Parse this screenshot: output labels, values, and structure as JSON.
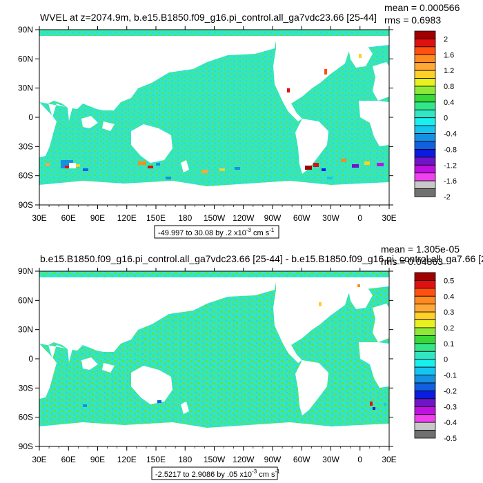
{
  "palette": {
    "ocean": "#33e6c3",
    "ocean_light": "#2ee0b4",
    "ocean_green": "#5ee04e",
    "ocean_blue": "#29c8e0",
    "land": "#ffffff",
    "frame": "#000000"
  },
  "chart_data": [
    {
      "type": "heatmap",
      "title": "WVEL at z=2074.9m, b.e15.B1850.f09_g16.pi_control.all_ga7vdc23.66 [25-44]",
      "stats": {
        "mean": "mean = 0.000566",
        "rms": "rms = 0.6983"
      },
      "range_label": "-49.997 to 30.08 by .2 x10",
      "range_exp": "-3",
      "range_units": " cm s",
      "range_units_exp": "-1",
      "x_ticks": [
        "30E",
        "60E",
        "90E",
        "120E",
        "150E",
        "180",
        "150W",
        "120W",
        "90W",
        "60W",
        "30W",
        "0",
        "30E"
      ],
      "y_ticks": [
        "90N",
        "60N",
        "30N",
        "0",
        "30S",
        "60S",
        "90S"
      ],
      "colorbar": {
        "labels": [
          "2",
          "1.6",
          "1.2",
          "0.8",
          "0.4",
          "0",
          "-0.4",
          "-0.8",
          "-1.2",
          "-1.6",
          "-2"
        ],
        "colors": [
          "#a00000",
          "#e01010",
          "#ff5010",
          "#ff8a20",
          "#ffa838",
          "#ffd028",
          "#e8f020",
          "#8ee838",
          "#38d838",
          "#32e68a",
          "#33e6c3",
          "#19f0f0",
          "#16c4f0",
          "#1690e0",
          "#1060e0",
          "#0a1ce0",
          "#7014c8",
          "#c010e0",
          "#f040f0",
          "#c8c8c8",
          "#707070"
        ]
      }
    },
    {
      "type": "heatmap",
      "title": "b.e15.B1850.f09_g16.pi_control.all_ga7vdc23.66 [25-44] - b.e15.B1850.f09_g16.pi_control.all_ga7.66 [2",
      "stats": {
        "mean": "mean = 1.305e-05",
        "rms": "rms = 0.04863"
      },
      "range_label": "-2.5217 to 2.9086 by .05 x10",
      "range_exp": "-3",
      "range_units": " cm s",
      "range_units_exp": "-1",
      "x_ticks": [
        "30E",
        "60E",
        "90E",
        "120E",
        "150E",
        "180",
        "150W",
        "120W",
        "90W",
        "60W",
        "30W",
        "0",
        "30E"
      ],
      "y_ticks": [
        "90N",
        "60N",
        "30N",
        "0",
        "30S",
        "60S",
        "90S"
      ],
      "colorbar": {
        "labels": [
          "0.5",
          "0.4",
          "0.3",
          "0.2",
          "0.1",
          "0",
          "-0.1",
          "-0.2",
          "-0.3",
          "-0.4",
          "-0.5"
        ],
        "colors": [
          "#a00000",
          "#e01010",
          "#ff5010",
          "#ff8a20",
          "#ffa838",
          "#ffd028",
          "#e8f020",
          "#8ee838",
          "#38d838",
          "#32e68a",
          "#33e6c3",
          "#19f0f0",
          "#16c4f0",
          "#1690e0",
          "#1060e0",
          "#0a1ce0",
          "#7014c8",
          "#c010e0",
          "#f040f0",
          "#c8c8c8",
          "#707070"
        ]
      }
    }
  ]
}
